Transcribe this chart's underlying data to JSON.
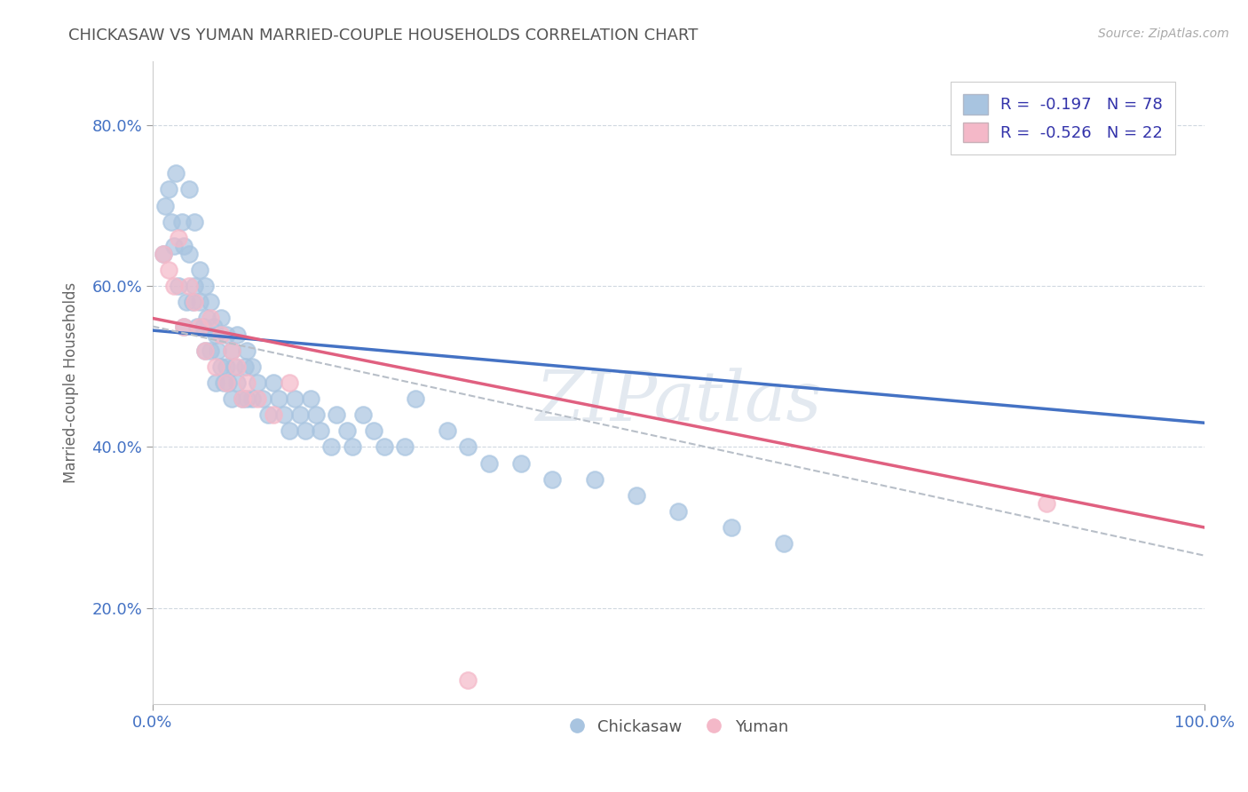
{
  "title": "CHICKASAW VS YUMAN MARRIED-COUPLE HOUSEHOLDS CORRELATION CHART",
  "source_text": "Source: ZipAtlas.com",
  "xlabel": "",
  "ylabel": "Married-couple Households",
  "xlim": [
    0.0,
    1.0
  ],
  "ylim": [
    0.08,
    0.88
  ],
  "xtick_labels": [
    "0.0%",
    "100.0%"
  ],
  "ytick_labels": [
    "20.0%",
    "40.0%",
    "60.0%",
    "80.0%"
  ],
  "ytick_values": [
    0.2,
    0.4,
    0.6,
    0.8
  ],
  "xtick_values": [
    0.0,
    1.0
  ],
  "R_chickasaw": -0.197,
  "N_chickasaw": 78,
  "R_yuman": -0.526,
  "N_yuman": 22,
  "chickasaw_color": "#a8c4e0",
  "yuman_color": "#f4b8c8",
  "chickasaw_line_color": "#4472c4",
  "yuman_line_color": "#e06080",
  "regression_line_color": "#b8bfc8",
  "watermark": "ZIPatlas",
  "background_color": "#ffffff",
  "grid_color": "#d0d8e0",
  "chickasaw_scatter_x": [
    0.01,
    0.012,
    0.015,
    0.018,
    0.02,
    0.022,
    0.025,
    0.028,
    0.03,
    0.03,
    0.032,
    0.035,
    0.035,
    0.038,
    0.04,
    0.04,
    0.042,
    0.045,
    0.045,
    0.048,
    0.05,
    0.05,
    0.052,
    0.055,
    0.055,
    0.058,
    0.06,
    0.06,
    0.062,
    0.065,
    0.065,
    0.068,
    0.07,
    0.07,
    0.072,
    0.075,
    0.075,
    0.078,
    0.08,
    0.08,
    0.085,
    0.088,
    0.09,
    0.09,
    0.095,
    0.095,
    0.1,
    0.105,
    0.11,
    0.115,
    0.12,
    0.125,
    0.13,
    0.135,
    0.14,
    0.145,
    0.15,
    0.155,
    0.16,
    0.17,
    0.175,
    0.185,
    0.19,
    0.2,
    0.21,
    0.22,
    0.24,
    0.25,
    0.28,
    0.3,
    0.32,
    0.35,
    0.38,
    0.42,
    0.46,
    0.5,
    0.55,
    0.6
  ],
  "chickasaw_scatter_y": [
    0.64,
    0.7,
    0.72,
    0.68,
    0.65,
    0.74,
    0.6,
    0.68,
    0.55,
    0.65,
    0.58,
    0.64,
    0.72,
    0.58,
    0.6,
    0.68,
    0.55,
    0.62,
    0.58,
    0.55,
    0.52,
    0.6,
    0.56,
    0.52,
    0.58,
    0.55,
    0.48,
    0.54,
    0.52,
    0.5,
    0.56,
    0.48,
    0.5,
    0.54,
    0.48,
    0.52,
    0.46,
    0.5,
    0.48,
    0.54,
    0.46,
    0.5,
    0.46,
    0.52,
    0.46,
    0.5,
    0.48,
    0.46,
    0.44,
    0.48,
    0.46,
    0.44,
    0.42,
    0.46,
    0.44,
    0.42,
    0.46,
    0.44,
    0.42,
    0.4,
    0.44,
    0.42,
    0.4,
    0.44,
    0.42,
    0.4,
    0.4,
    0.46,
    0.42,
    0.4,
    0.38,
    0.38,
    0.36,
    0.36,
    0.34,
    0.32,
    0.3,
    0.28
  ],
  "yuman_scatter_x": [
    0.01,
    0.015,
    0.02,
    0.025,
    0.03,
    0.035,
    0.04,
    0.045,
    0.05,
    0.055,
    0.06,
    0.065,
    0.07,
    0.075,
    0.08,
    0.085,
    0.09,
    0.1,
    0.115,
    0.13,
    0.3,
    0.85
  ],
  "yuman_scatter_y": [
    0.64,
    0.62,
    0.6,
    0.66,
    0.55,
    0.6,
    0.58,
    0.55,
    0.52,
    0.56,
    0.5,
    0.54,
    0.48,
    0.52,
    0.5,
    0.46,
    0.48,
    0.46,
    0.44,
    0.48,
    0.11,
    0.33
  ]
}
